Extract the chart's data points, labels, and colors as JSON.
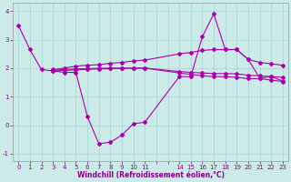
{
  "xlabel": "Windchill (Refroidissement éolien,°C)",
  "bg_color": "#cceae8",
  "line_color": "#aa00aa",
  "grid_color": "#aad8d8",
  "series": [
    {
      "x": [
        0,
        1,
        2,
        3,
        4,
        5,
        6,
        7,
        8,
        9,
        10,
        11,
        14,
        15,
        16,
        17,
        18,
        19,
        20,
        21,
        22,
        23
      ],
      "y": [
        3.5,
        2.65,
        1.95,
        1.9,
        1.85,
        1.85,
        0.3,
        -0.65,
        -0.6,
        -0.35,
        0.05,
        0.1,
        1.7,
        1.7,
        3.1,
        3.9,
        2.65,
        2.65,
        2.3,
        1.65,
        1.7,
        1.55
      ]
    },
    {
      "x": [
        3,
        4,
        5,
        6,
        7,
        8,
        9,
        10,
        11,
        14,
        15,
        16,
        17,
        18,
        19,
        20,
        21,
        22,
        23
      ],
      "y": [
        1.95,
        2.0,
        2.07,
        2.1,
        2.12,
        2.17,
        2.2,
        2.25,
        2.28,
        2.5,
        2.55,
        2.62,
        2.65,
        2.65,
        2.65,
        2.3,
        2.2,
        2.15,
        2.1
      ]
    },
    {
      "x": [
        3,
        4,
        5,
        6,
        7,
        8,
        9,
        10,
        11,
        14,
        15,
        16,
        17,
        18,
        19,
        20,
        21,
        22,
        23
      ],
      "y": [
        1.9,
        1.92,
        1.94,
        1.96,
        1.97,
        1.98,
        1.99,
        2.0,
        2.0,
        1.83,
        1.78,
        1.73,
        1.7,
        1.7,
        1.68,
        1.63,
        1.63,
        1.58,
        1.53
      ]
    },
    {
      "x": [
        3,
        4,
        5,
        6,
        7,
        8,
        9,
        10,
        11,
        14,
        15,
        16,
        17,
        18,
        19,
        20,
        21,
        22,
        23
      ],
      "y": [
        1.92,
        1.95,
        1.97,
        1.98,
        1.99,
        2.0,
        2.0,
        2.0,
        2.0,
        1.88,
        1.85,
        1.83,
        1.81,
        1.81,
        1.8,
        1.75,
        1.73,
        1.7,
        1.68
      ]
    }
  ],
  "xlim": [
    -0.5,
    23.5
  ],
  "ylim": [
    -1.25,
    4.3
  ],
  "xtick_positions": [
    0,
    1,
    2,
    3,
    4,
    5,
    6,
    7,
    8,
    9,
    10,
    11,
    14,
    15,
    16,
    17,
    18,
    19,
    20,
    21,
    22,
    23
  ],
  "xtick_labels": [
    "0",
    "1",
    "2",
    "3",
    "4",
    "5",
    "6",
    "7",
    "8",
    "9",
    "10",
    "11",
    "14",
    "15",
    "16",
    "17",
    "18",
    "19",
    "20",
    "21",
    "22",
    "23"
  ],
  "yticks": [
    -1,
    0,
    1,
    2,
    3,
    4
  ],
  "xlabel_color": "#880088",
  "tick_color": "#880088",
  "tick_fontsize": 5.0,
  "xlabel_fontsize": 5.5
}
